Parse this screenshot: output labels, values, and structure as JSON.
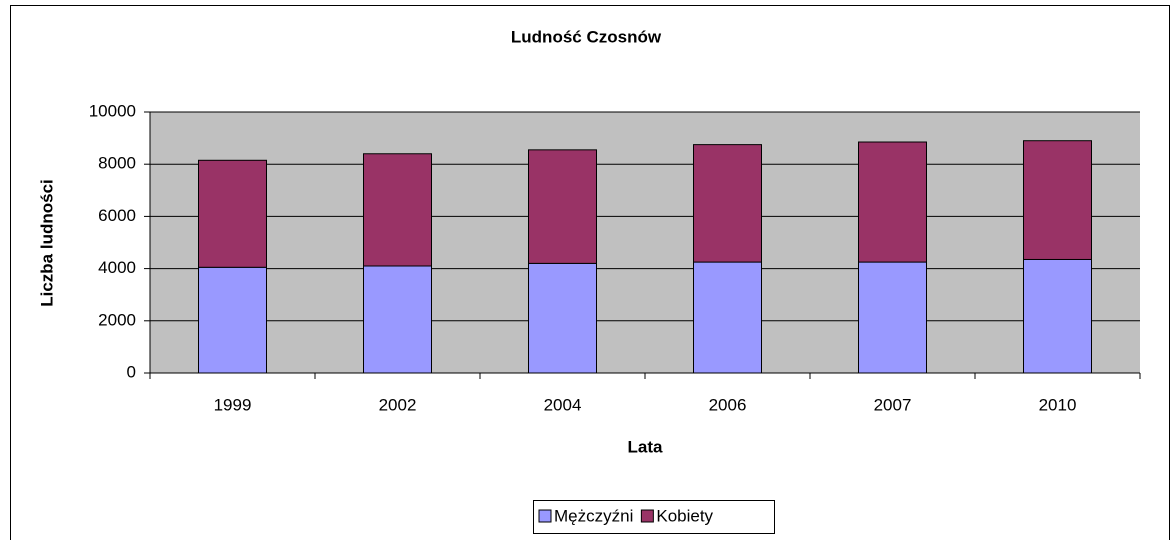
{
  "chart_data": {
    "type": "stacked_bar",
    "title": "Ludność Czosnów",
    "xlabel": "Lata",
    "ylabel": "Liczba ludności",
    "categories": [
      "1999",
      "2002",
      "2004",
      "2006",
      "2007",
      "2010"
    ],
    "series": [
      {
        "name": "Mężczyźni",
        "color": "#9999ff",
        "values": [
          4050,
          4100,
          4200,
          4250,
          4250,
          4350
        ]
      },
      {
        "name": "Kobiety",
        "color": "#993366",
        "values": [
          4100,
          4300,
          4350,
          4500,
          4600,
          4550
        ]
      }
    ],
    "ylim": [
      0,
      10000
    ],
    "yticks": [
      0,
      2000,
      4000,
      6000,
      8000,
      10000
    ],
    "grid": true,
    "legend": "bottom"
  }
}
